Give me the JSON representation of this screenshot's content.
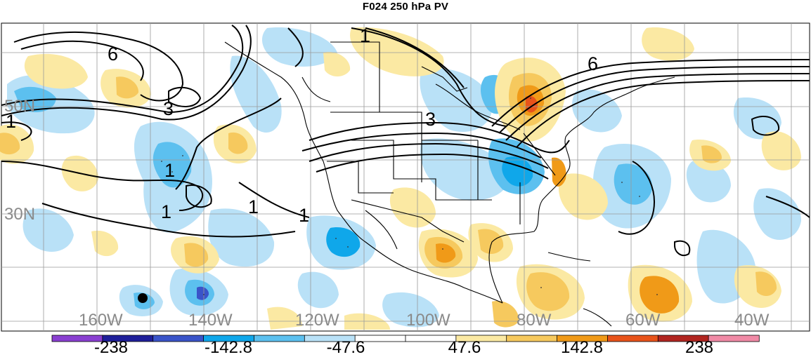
{
  "title": "F024 250 hPa PV",
  "lat_labels": [
    "50N",
    "30N"
  ],
  "lon_labels": [
    "160W",
    "140W",
    "120W",
    "100W",
    "80W",
    "60W",
    "40W"
  ],
  "contour_labels": [
    "6",
    "3",
    "1",
    "1",
    "1",
    "1",
    "1",
    "1",
    "3",
    "6"
  ],
  "colorbar": {
    "labels": [
      "-238",
      "-142.8",
      "-47.6",
      "47.6",
      "142.8",
      "238"
    ],
    "colors": [
      "#8a3fd1",
      "#1f1f9a",
      "#3a54c9",
      "#0fa7ea",
      "#5cc0ef",
      "#b9e1f7",
      "#ffffff",
      "#ffffff",
      "#fbe9a3",
      "#f6c95e",
      "#f09a18",
      "#e8531a",
      "#b12520",
      "#f08aa6"
    ]
  },
  "palette": {
    "pos_light": "#fbe9a3",
    "pos_mid": "#f6c95e",
    "pos_orange": "#f09a18",
    "pos_red": "#e8531a",
    "neg_light": "#b9e1f7",
    "neg_mid": "#5cc0ef",
    "neg_blue": "#0fa7ea",
    "neg_dark": "#3a54c9"
  }
}
